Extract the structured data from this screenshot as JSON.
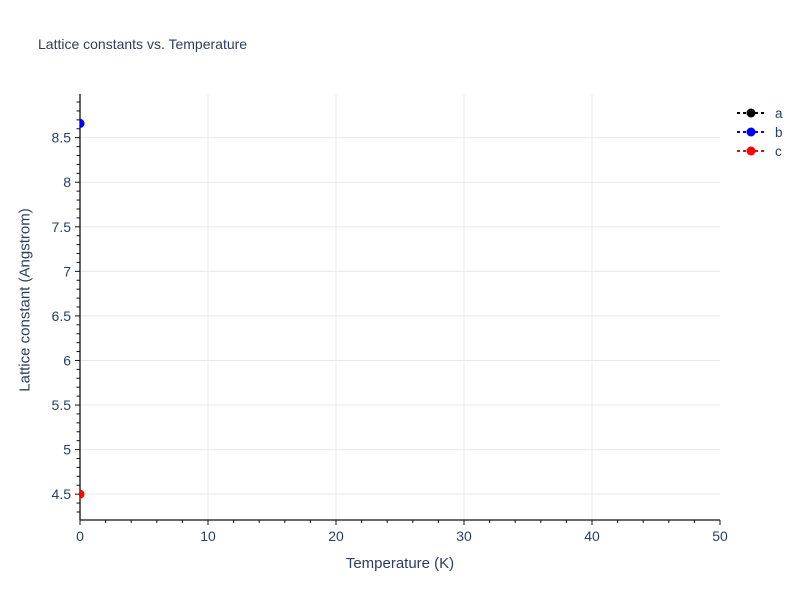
{
  "page": {
    "background": "#ffffff"
  },
  "chart_data": {
    "type": "scatter",
    "title": "Lattice constants vs. Temperature",
    "xlabel": "Temperature (K)",
    "ylabel": "Lattice constant (Angstrom)",
    "xlim": [
      0,
      50
    ],
    "ylim": [
      4.21,
      8.99
    ],
    "x_ticks": [
      0,
      10,
      20,
      30,
      40,
      50
    ],
    "x_tick_labels": [
      "0",
      "10",
      "20",
      "30",
      "40",
      "50"
    ],
    "y_ticks": [
      4.5,
      5,
      5.5,
      6,
      6.5,
      7,
      7.5,
      8,
      8.5
    ],
    "y_tick_labels": [
      "4.5",
      "5",
      "5.5",
      "6",
      "6.5",
      "7",
      "7.5",
      "8",
      "8.5"
    ],
    "x_minor_step": 2,
    "y_minor_step": 0.1,
    "grid": true,
    "legend": {
      "position": "outside-top-right",
      "entries": [
        "a",
        "b",
        "c"
      ]
    },
    "series": [
      {
        "name": "a",
        "color": "#000000",
        "line_style": "dashed",
        "marker": "circle",
        "points": [
          {
            "x": 0,
            "y": 8.66
          }
        ],
        "occluded_by": "b"
      },
      {
        "name": "b",
        "color": "#0000ff",
        "line_style": "dashed",
        "marker": "circle",
        "points": [
          {
            "x": 0,
            "y": 8.66
          }
        ]
      },
      {
        "name": "c",
        "color": "#ff0000",
        "line_style": "dashed",
        "marker": "circle",
        "points": [
          {
            "x": 0,
            "y": 4.5
          }
        ]
      }
    ],
    "colors": {
      "text": "#2a3f5f",
      "grid": "#e8e8e8",
      "axis": "#111111"
    }
  }
}
